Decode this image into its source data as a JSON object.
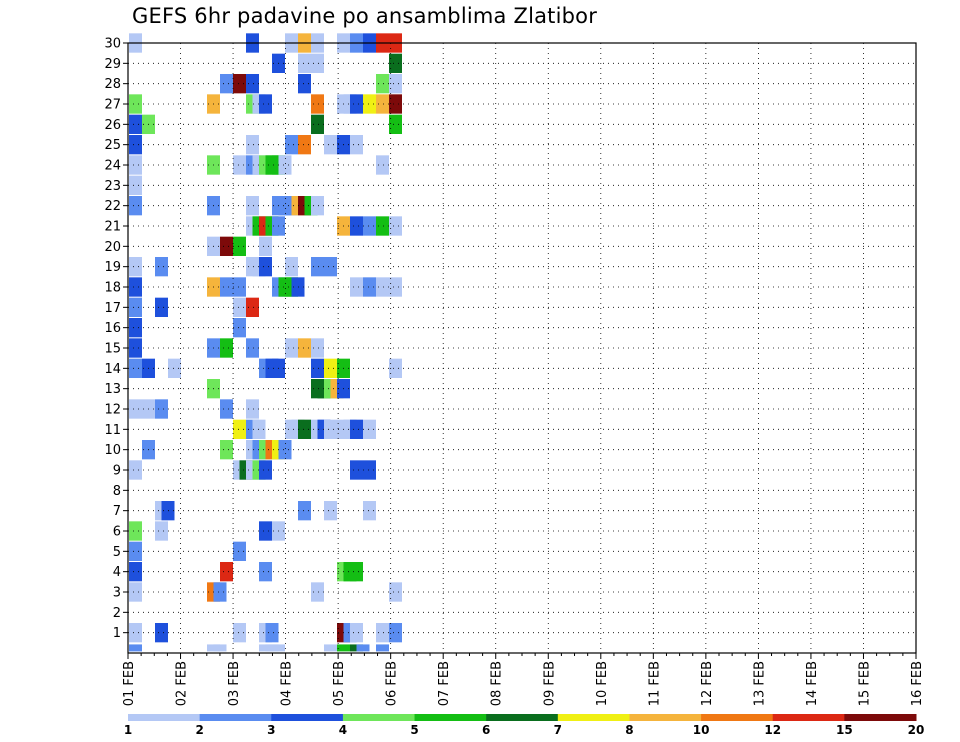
{
  "chart_data": {
    "type": "heatmap",
    "title": "GEFS 6hr padavine po ansamblima Zlatibor",
    "x_tick_labels": [
      "01 FEB",
      "02 FEB",
      "03 FEB",
      "04 FEB",
      "05 FEB",
      "06 FEB",
      "07 FEB",
      "08 FEB",
      "09 FEB",
      "10 FEB",
      "11 FEB",
      "12 FEB",
      "13 FEB",
      "14 FEB",
      "15 FEB",
      "16 FEB"
    ],
    "x_range_days": [
      1,
      16
    ],
    "time_step_hours": 6,
    "y_tick_labels": [
      "1",
      "2",
      "3",
      "4",
      "5",
      "6",
      "7",
      "8",
      "9",
      "10",
      "11",
      "12",
      "13",
      "14",
      "15",
      "16",
      "17",
      "18",
      "19",
      "20",
      "21",
      "22",
      "23",
      "24",
      "25",
      "26",
      "27",
      "28",
      "29",
      "30"
    ],
    "y_range": [
      0,
      30
    ],
    "grid": "dotted",
    "colorbar": {
      "position": "bottom",
      "labels": [
        "1",
        "2",
        "3",
        "4",
        "5",
        "6",
        "7",
        "8",
        "10",
        "12",
        "15",
        "20"
      ],
      "bins": [
        {
          "color": "#b4c8f5"
        },
        {
          "color": "#5a8cf0"
        },
        {
          "color": "#1e50dc"
        },
        {
          "color": "#6ee65a"
        },
        {
          "color": "#14be14"
        },
        {
          "color": "#0a6e1e"
        },
        {
          "color": "#f0f014"
        },
        {
          "color": "#f5b43c"
        },
        {
          "color": "#f07814"
        },
        {
          "color": "#dc2814"
        },
        {
          "color": "#7d0a0a"
        }
      ]
    },
    "cells": [
      [
        1,
        30,
        1
      ],
      [
        10,
        30,
        3
      ],
      [
        13,
        30,
        1
      ],
      [
        14,
        30,
        8
      ],
      [
        15,
        30,
        1
      ],
      [
        17,
        30,
        1
      ],
      [
        18,
        30,
        2
      ],
      [
        19,
        30,
        3
      ],
      [
        20,
        30,
        10
      ],
      [
        21,
        30,
        10
      ],
      [
        12,
        29,
        3
      ],
      [
        14,
        29,
        1
      ],
      [
        15,
        29,
        1
      ],
      [
        21,
        29,
        6
      ],
      [
        8,
        28,
        2
      ],
      [
        9,
        28,
        11
      ],
      [
        10,
        28,
        3
      ],
      [
        14,
        28,
        3
      ],
      [
        20,
        28,
        4
      ],
      [
        21,
        28,
        1
      ],
      [
        1,
        27,
        4
      ],
      [
        7,
        27,
        8
      ],
      [
        10,
        27,
        4
      ],
      [
        10.5,
        27,
        1
      ],
      [
        11,
        27,
        3
      ],
      [
        15,
        27,
        9
      ],
      [
        17,
        27,
        1
      ],
      [
        17.5,
        27,
        1
      ],
      [
        18,
        27,
        3
      ],
      [
        19,
        27,
        7
      ],
      [
        20,
        27,
        8
      ],
      [
        21,
        27,
        11
      ],
      [
        1,
        26,
        3
      ],
      [
        2,
        26,
        4
      ],
      [
        15,
        26,
        6
      ],
      [
        21,
        26,
        5
      ],
      [
        1,
        25,
        3
      ],
      [
        10,
        25,
        1
      ],
      [
        13,
        25,
        2
      ],
      [
        14,
        25,
        9
      ],
      [
        16,
        25,
        1
      ],
      [
        17,
        25,
        3
      ],
      [
        18,
        25,
        1
      ],
      [
        1,
        24,
        1
      ],
      [
        7,
        24,
        4
      ],
      [
        9,
        24,
        1
      ],
      [
        10,
        24,
        2
      ],
      [
        10.5,
        24,
        1
      ],
      [
        11,
        24,
        4
      ],
      [
        11.5,
        24,
        5
      ],
      [
        12,
        24,
        5
      ],
      [
        12.5,
        24,
        1
      ],
      [
        20,
        24,
        1
      ],
      [
        1,
        23,
        1
      ],
      [
        1,
        22,
        2
      ],
      [
        7,
        22,
        2
      ],
      [
        10,
        22,
        1
      ],
      [
        12,
        22,
        2
      ],
      [
        12.5,
        22,
        2
      ],
      [
        13,
        22,
        2
      ],
      [
        13.5,
        22,
        8
      ],
      [
        14,
        22,
        11
      ],
      [
        14.5,
        22,
        5
      ],
      [
        15,
        22,
        1
      ],
      [
        10,
        21,
        1
      ],
      [
        10.5,
        21,
        5
      ],
      [
        11,
        21,
        10
      ],
      [
        11.5,
        21,
        5
      ],
      [
        12,
        21,
        2
      ],
      [
        17,
        21,
        8
      ],
      [
        18,
        21,
        3
      ],
      [
        19,
        21,
        2
      ],
      [
        20,
        21,
        5
      ],
      [
        21,
        21,
        1
      ],
      [
        7,
        20,
        1
      ],
      [
        8,
        20,
        11
      ],
      [
        9,
        20,
        5
      ],
      [
        11,
        20,
        1
      ],
      [
        1,
        19,
        1
      ],
      [
        3,
        19,
        2
      ],
      [
        10,
        19,
        1
      ],
      [
        10.5,
        19,
        1
      ],
      [
        11,
        19,
        3
      ],
      [
        13,
        19,
        1
      ],
      [
        15,
        19,
        2
      ],
      [
        16,
        19,
        2
      ],
      [
        1,
        18,
        3
      ],
      [
        7,
        18,
        8
      ],
      [
        8,
        18,
        2
      ],
      [
        9,
        18,
        2
      ],
      [
        12,
        18,
        2
      ],
      [
        12.5,
        18,
        5
      ],
      [
        13,
        18,
        5
      ],
      [
        13.5,
        18,
        3
      ],
      [
        18,
        18,
        1
      ],
      [
        19,
        18,
        2
      ],
      [
        20,
        18,
        1
      ],
      [
        21,
        18,
        1
      ],
      [
        1,
        17,
        2
      ],
      [
        3,
        17,
        3
      ],
      [
        9,
        17,
        1
      ],
      [
        10,
        17,
        10
      ],
      [
        1,
        16,
        3
      ],
      [
        9,
        16,
        2
      ],
      [
        1,
        15,
        3
      ],
      [
        7,
        15,
        2
      ],
      [
        8,
        15,
        5
      ],
      [
        10,
        15,
        2
      ],
      [
        13,
        15,
        1
      ],
      [
        14,
        15,
        8
      ],
      [
        15,
        15,
        1
      ],
      [
        1,
        14,
        2
      ],
      [
        2,
        14,
        3
      ],
      [
        4,
        14,
        1
      ],
      [
        11,
        14,
        2
      ],
      [
        11.5,
        14,
        3
      ],
      [
        12,
        14,
        3
      ],
      [
        15,
        14,
        3
      ],
      [
        16,
        14,
        7
      ],
      [
        17,
        14,
        5
      ],
      [
        21,
        14,
        1
      ],
      [
        7,
        13,
        4
      ],
      [
        15,
        13,
        6
      ],
      [
        15.5,
        13,
        6
      ],
      [
        16,
        13,
        4
      ],
      [
        16.5,
        13,
        8
      ],
      [
        17,
        13,
        3
      ],
      [
        1,
        12,
        1
      ],
      [
        2,
        12,
        1
      ],
      [
        3,
        12,
        2
      ],
      [
        8,
        12,
        2
      ],
      [
        10,
        12,
        1
      ],
      [
        9,
        11,
        7
      ],
      [
        10,
        11,
        2
      ],
      [
        10.5,
        11,
        1
      ],
      [
        13,
        11,
        1
      ],
      [
        13.5,
        11,
        1
      ],
      [
        14,
        11,
        6
      ],
      [
        15,
        11,
        1
      ],
      [
        15.5,
        11,
        3
      ],
      [
        16,
        11,
        1
      ],
      [
        17,
        11,
        1
      ],
      [
        17.5,
        11,
        1
      ],
      [
        18,
        11,
        3
      ],
      [
        19,
        11,
        1
      ],
      [
        2,
        10,
        2
      ],
      [
        8,
        10,
        4
      ],
      [
        10,
        10,
        1
      ],
      [
        10.5,
        10,
        2
      ],
      [
        11,
        10,
        4
      ],
      [
        11.5,
        10,
        9
      ],
      [
        12,
        10,
        7
      ],
      [
        12.5,
        10,
        2
      ],
      [
        1,
        9,
        1
      ],
      [
        9,
        9,
        1
      ],
      [
        9.5,
        9,
        6
      ],
      [
        10,
        9,
        1
      ],
      [
        10.5,
        9,
        4
      ],
      [
        11,
        9,
        3
      ],
      [
        18,
        9,
        3
      ],
      [
        19,
        9,
        3
      ],
      [
        3,
        7,
        1
      ],
      [
        3.5,
        7,
        3
      ],
      [
        14,
        7,
        2
      ],
      [
        16,
        7,
        1
      ],
      [
        19,
        7,
        1
      ],
      [
        1,
        6,
        4
      ],
      [
        3,
        6,
        1
      ],
      [
        11,
        6,
        3
      ],
      [
        12,
        6,
        1
      ],
      [
        1,
        5,
        2
      ],
      [
        9,
        5,
        2
      ],
      [
        1,
        4,
        3
      ],
      [
        8,
        4,
        10
      ],
      [
        11,
        4,
        2
      ],
      [
        17,
        4,
        4
      ],
      [
        17.5,
        4,
        5
      ],
      [
        18,
        4,
        5
      ],
      [
        1,
        3,
        1
      ],
      [
        7,
        3,
        9
      ],
      [
        7.5,
        3,
        2
      ],
      [
        15,
        3,
        1
      ],
      [
        21,
        3,
        1
      ],
      [
        1,
        1,
        1
      ],
      [
        3,
        1,
        3
      ],
      [
        9,
        1,
        1
      ],
      [
        11,
        1,
        1
      ],
      [
        11.5,
        1,
        2
      ],
      [
        17,
        1,
        11
      ],
      [
        17.5,
        1,
        2
      ],
      [
        18,
        1,
        1
      ],
      [
        20,
        1,
        1
      ],
      [
        21,
        1,
        2
      ],
      [
        1,
        0.25,
        2
      ],
      [
        7,
        0.25,
        1
      ],
      [
        7.5,
        0.25,
        1
      ],
      [
        11,
        0.25,
        1
      ],
      [
        11.5,
        0.25,
        1
      ],
      [
        12,
        0.25,
        1
      ],
      [
        16,
        0.25,
        1
      ],
      [
        17,
        0.25,
        5
      ],
      [
        18,
        0.25,
        6
      ],
      [
        18.5,
        0.25,
        2
      ],
      [
        20,
        0.25,
        2
      ]
    ]
  }
}
